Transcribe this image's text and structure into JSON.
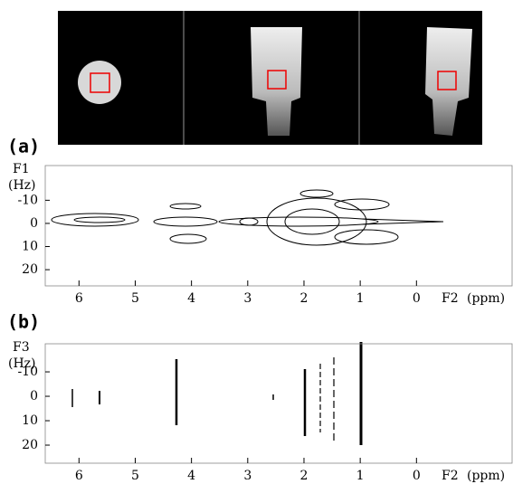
{
  "chart_data": [
    {
      "type": "contour",
      "panel_label": "(a)",
      "ylabel": "F1",
      "yunit": "(Hz)",
      "xlabel": "F2",
      "xunit": "(ppm)",
      "xlim": [
        6.6,
        -1.7
      ],
      "xticks": [
        6,
        5,
        4,
        3,
        2,
        1,
        0
      ],
      "ylim": [
        -25,
        27
      ],
      "yticks": [
        -10,
        0,
        10,
        20
      ],
      "y_inverted": true
    },
    {
      "type": "contour",
      "panel_label": "(b)",
      "ylabel": "F3",
      "yunit": "(Hz)",
      "xlabel": "F2",
      "xunit": "(ppm)",
      "xlim": [
        6.6,
        -1.7
      ],
      "xticks": [
        6,
        5,
        4,
        3,
        2,
        1,
        0
      ],
      "ylim": [
        -21.5,
        27.4
      ],
      "yticks": [
        -10,
        0,
        10,
        20
      ],
      "y_inverted": true
    }
  ]
}
